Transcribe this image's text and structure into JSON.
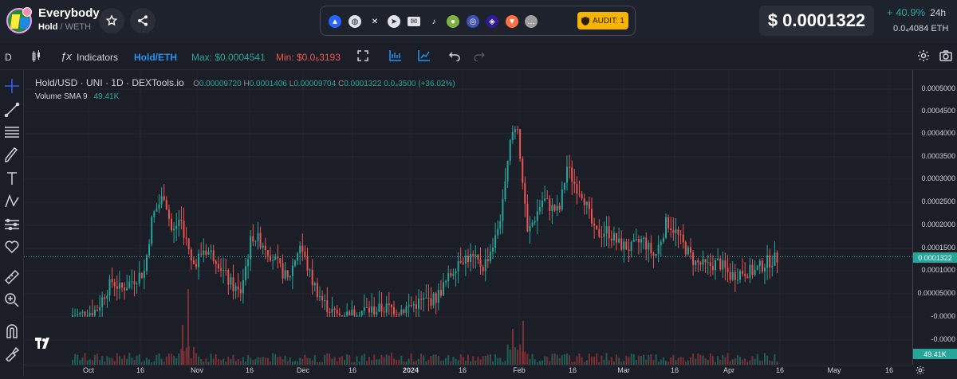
{
  "token": {
    "name": "Everybody",
    "pair_base": "Hold",
    "pair_sep": " / ",
    "pair_quote": "WETH"
  },
  "audit": {
    "label": "AUDIT: 1"
  },
  "price": {
    "usd": "$ 0.0001322",
    "change": "+ 40.9%",
    "period": "24h",
    "eth_value": "0.0₄4084",
    "eth_unit": "ETH"
  },
  "toolbar": {
    "interval": "D",
    "indicators_label": "Indicators",
    "pair_label": "Hold/ETH",
    "max_label": "Max: $0.0004541",
    "min_label": "Min: $0.0₅3193"
  },
  "legend": {
    "title": "Hold/USD · UNI · 1D · DEXTools.io",
    "o_label": "O",
    "o": "0.00009720",
    "h_label": "H",
    "h": "0.0001406",
    "l_label": "L",
    "l": "0.00009704",
    "c_label": "C",
    "c": "0.0001322",
    "change": "0.0₄3500 (+36.02%)",
    "volume_label": "Volume SMA 9",
    "volume_value": "49.41K"
  },
  "last_price_tag": "0.0001322",
  "volume_tag": "49.41K",
  "colors": {
    "up": "#26a69a",
    "down": "#ef5350",
    "accent": "#2962ff",
    "audit": "#f7b500"
  },
  "chart_data": {
    "type": "candlestick",
    "y_ticks": [
      "0.0005000",
      "0.0004500",
      "0.0004000",
      "0.0003500",
      "0.0003000",
      "0.0002500",
      "0.0002000",
      "0.0001500",
      "0.0001000",
      "0.00005000",
      "-0.0000",
      "-0.0000"
    ],
    "x_ticks": [
      "Oct",
      "16",
      "Nov",
      "16",
      "Dec",
      "16",
      "2024",
      "16",
      "Feb",
      "16",
      "Mar",
      "16",
      "Apr",
      "16",
      "May",
      "16"
    ],
    "ylim": [
      0,
      0.00052
    ],
    "last_close": 0.0001322
  }
}
